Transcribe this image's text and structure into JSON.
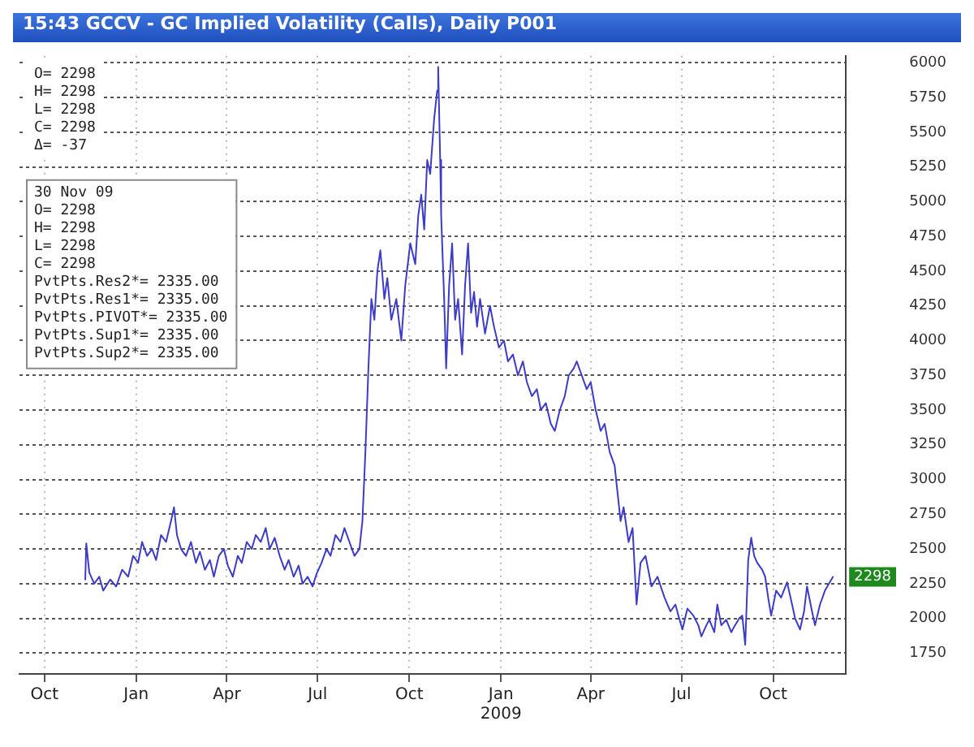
{
  "chart_data": {
    "type": "line",
    "title": "15:43 GCCV - GC Implied Volatility (Calls), Daily P001",
    "x": [
      "2007-11-11",
      "2007-11-12",
      "2007-11-15",
      "2007-11-20",
      "2007-11-25",
      "2007-11-29",
      "2007-12-06",
      "2007-12-12",
      "2007-12-18",
      "2007-12-24",
      "2007-12-29",
      "2008-01-03",
      "2008-01-07",
      "2008-01-12",
      "2008-01-17",
      "2008-01-21",
      "2008-01-26",
      "2008-01-31",
      "2008-02-05",
      "2008-02-08",
      "2008-02-11",
      "2008-02-15",
      "2008-02-20",
      "2008-02-25",
      "2008-03-01",
      "2008-03-05",
      "2008-03-10",
      "2008-03-15",
      "2008-03-19",
      "2008-03-24",
      "2008-03-29",
      "2008-04-02",
      "2008-04-07",
      "2008-04-12",
      "2008-04-16",
      "2008-04-21",
      "2008-04-26",
      "2008-04-30",
      "2008-05-05",
      "2008-05-10",
      "2008-05-14",
      "2008-05-19",
      "2008-05-24",
      "2008-05-29",
      "2008-06-02",
      "2008-06-07",
      "2008-06-12",
      "2008-06-16",
      "2008-06-21",
      "2008-06-26",
      "2008-06-30",
      "2008-07-05",
      "2008-07-10",
      "2008-07-14",
      "2008-07-19",
      "2008-07-24",
      "2008-07-28",
      "2008-08-02",
      "2008-08-07",
      "2008-08-12",
      "2008-08-15",
      "2008-08-18",
      "2008-08-21",
      "2008-08-24",
      "2008-08-27",
      "2008-08-30",
      "2008-09-02",
      "2008-09-06",
      "2008-09-09",
      "2008-09-13",
      "2008-09-18",
      "2008-09-23",
      "2008-09-27",
      "2008-10-02",
      "2008-10-07",
      "2008-10-10",
      "2008-10-13",
      "2008-10-16",
      "2008-10-19",
      "2008-10-22",
      "2008-10-26",
      "2008-10-29",
      "2008-10-30",
      "2008-11-01",
      "2008-11-02",
      "2008-11-05",
      "2008-11-07",
      "2008-11-10",
      "2008-11-13",
      "2008-11-16",
      "2008-11-19",
      "2008-11-23",
      "2008-11-26",
      "2008-11-29",
      "2008-12-02",
      "2008-12-05",
      "2008-12-08",
      "2008-12-11",
      "2008-12-16",
      "2008-12-21",
      "2008-12-25",
      "2008-12-30",
      "2009-01-04",
      "2009-01-08",
      "2009-01-13",
      "2009-01-18",
      "2009-01-23",
      "2009-01-27",
      "2009-02-01",
      "2009-02-06",
      "2009-02-10",
      "2009-02-15",
      "2009-02-20",
      "2009-02-24",
      "2009-03-01",
      "2009-03-06",
      "2009-03-10",
      "2009-03-15",
      "2009-03-18",
      "2009-03-23",
      "2009-03-28",
      "2009-04-01",
      "2009-04-06",
      "2009-04-11",
      "2009-04-15",
      "2009-04-20",
      "2009-04-25",
      "2009-04-28",
      "2009-05-01",
      "2009-05-04",
      "2009-05-09",
      "2009-05-13",
      "2009-05-17",
      "2009-05-21",
      "2009-05-26",
      "2009-06-01",
      "2009-06-07",
      "2009-06-14",
      "2009-06-20",
      "2009-06-25",
      "2009-06-28",
      "2009-07-02",
      "2009-07-07",
      "2009-07-13",
      "2009-07-18",
      "2009-07-21",
      "2009-07-26",
      "2009-07-29",
      "2009-08-03",
      "2009-08-06",
      "2009-08-10",
      "2009-08-15",
      "2009-08-20",
      "2009-08-23",
      "2009-08-28",
      "2009-08-31",
      "2009-09-03",
      "2009-09-06",
      "2009-09-09",
      "2009-09-12",
      "2009-09-15",
      "2009-09-20",
      "2009-09-23",
      "2009-09-26",
      "2009-09-29",
      "2009-10-04",
      "2009-10-09",
      "2009-10-15",
      "2009-10-20",
      "2009-10-23",
      "2009-10-28",
      "2009-11-01",
      "2009-11-04",
      "2009-11-09",
      "2009-11-12",
      "2009-11-17",
      "2009-11-22",
      "2009-11-26",
      "2009-11-30"
    ],
    "values": [
      2280,
      2540,
      2330,
      2250,
      2300,
      2200,
      2280,
      2230,
      2350,
      2300,
      2450,
      2400,
      2550,
      2450,
      2500,
      2420,
      2600,
      2550,
      2700,
      2800,
      2600,
      2500,
      2450,
      2550,
      2400,
      2480,
      2350,
      2420,
      2300,
      2450,
      2500,
      2380,
      2300,
      2450,
      2400,
      2550,
      2500,
      2600,
      2550,
      2650,
      2500,
      2580,
      2450,
      2350,
      2420,
      2300,
      2380,
      2250,
      2300,
      2230,
      2320,
      2400,
      2500,
      2450,
      2600,
      2550,
      2650,
      2550,
      2450,
      2500,
      2700,
      3200,
      3800,
      4300,
      4150,
      4500,
      4650,
      4300,
      4450,
      4150,
      4300,
      4000,
      4400,
      4700,
      4550,
      4900,
      5050,
      4800,
      5300,
      5200,
      5600,
      5800,
      5970,
      5300,
      4900,
      4300,
      3800,
      4400,
      4700,
      4150,
      4300,
      3900,
      4400,
      4700,
      4200,
      4350,
      4100,
      4300,
      4050,
      4250,
      4100,
      3950,
      4000,
      3850,
      3900,
      3750,
      3850,
      3700,
      3600,
      3650,
      3500,
      3550,
      3400,
      3350,
      3500,
      3600,
      3750,
      3800,
      3850,
      3750,
      3650,
      3700,
      3500,
      3350,
      3400,
      3200,
      3100,
      2900,
      2700,
      2800,
      2550,
      2650,
      2100,
      2400,
      2450,
      2230,
      2300,
      2150,
      2050,
      2100,
      2020,
      1920,
      2070,
      2020,
      1950,
      1870,
      1950,
      1990,
      1900,
      2100,
      1950,
      1990,
      1900,
      1940,
      2000,
      2020,
      1810,
      2420,
      2580,
      2450,
      2400,
      2350,
      2300,
      2150,
      2020,
      2200,
      2150,
      2260,
      2100,
      2000,
      1920,
      2050,
      2230,
      2050,
      1950,
      2100,
      2200,
      2250,
      2298
    ],
    "value_labels": [
      null,
      null,
      null,
      null,
      null,
      null,
      null,
      null,
      null,
      null,
      null,
      null,
      null,
      null,
      null,
      null,
      null,
      null,
      null,
      null,
      null,
      null,
      null,
      null,
      null,
      null,
      null,
      null,
      null,
      null,
      null,
      null,
      null,
      null,
      null,
      null,
      null,
      null,
      null,
      null,
      null,
      null,
      null,
      null,
      null,
      null,
      null,
      null,
      null,
      null,
      null,
      null,
      null,
      null,
      null,
      null,
      null,
      null,
      null,
      null,
      null,
      null,
      null,
      null,
      null,
      null,
      null,
      null,
      null,
      null,
      null,
      null,
      null,
      null,
      null,
      null,
      null,
      null,
      null,
      null,
      null,
      null,
      null,
      null,
      null,
      null,
      null,
      null,
      null,
      null,
      null,
      null,
      null,
      null,
      null,
      null,
      null,
      null,
      null,
      null,
      null,
      null,
      null,
      null,
      null,
      null,
      null,
      null,
      null,
      null,
      null,
      null,
      null,
      null,
      null,
      null,
      null,
      null,
      null,
      null,
      null,
      null,
      null,
      null,
      null,
      null,
      null,
      null,
      null,
      null,
      null,
      null,
      null,
      null,
      null,
      null,
      null,
      null,
      null,
      null,
      null,
      null,
      null,
      null,
      null,
      null,
      null,
      null,
      null,
      null,
      null,
      null,
      null,
      null,
      null,
      null,
      null,
      null,
      null,
      null,
      null,
      null,
      null,
      null,
      null,
      null,
      null,
      null,
      null,
      null,
      null,
      null,
      null,
      null,
      null,
      null,
      null,
      null,
      "2298"
    ],
    "color": "#3c3cc8",
    "marker": "none",
    "xlim": [
      "2007-09-06",
      "2009-12-13"
    ],
    "xticks": [
      {
        "value": "2007-10-01",
        "label": "Oct"
      },
      {
        "value": "2008-01-01",
        "label": "Jan"
      },
      {
        "value": "2008-04-01",
        "label": "Apr"
      },
      {
        "value": "2008-07-01",
        "label": "Jul"
      },
      {
        "value": "2008-10-01",
        "label": "Oct"
      },
      {
        "value": "2009-01-01",
        "label": "Jan\n2009"
      },
      {
        "value": "2009-04-01",
        "label": "Apr"
      },
      {
        "value": "2009-07-01",
        "label": "Jul"
      },
      {
        "value": "2009-10-01",
        "label": "Oct"
      }
    ],
    "ylim": [
      1600,
      6050
    ],
    "yticks": [
      1750,
      2000,
      2250,
      2500,
      2750,
      3000,
      3250,
      3500,
      3750,
      4000,
      4250,
      4500,
      4750,
      5000,
      5250,
      5500,
      5750,
      6000
    ],
    "grid": true,
    "annotations": [
      "O= 2298\nH= 2298\nL= 2298\nC= 2298\nΔ= -37",
      "30 Nov 09\nO= 2298\nH= 2298\nL= 2298\nC= 2298\nPvtPts.Res2*= 2335.00\nPvtPts.Res1*= 2335.00\nPvtPts.PIVOT*= 2335.00\nPvtPts.Sup1*= 2335.00\nPvtPts.Sup2*= 2335.00"
    ]
  }
}
